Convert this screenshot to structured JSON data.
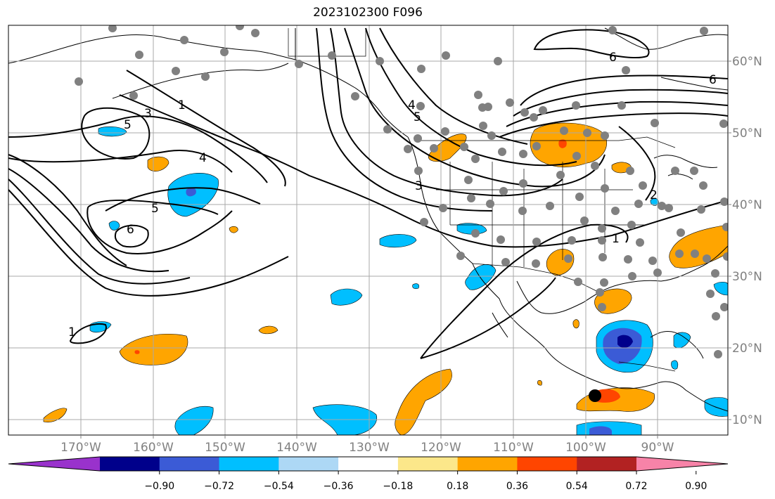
{
  "title": "2023102300 F096",
  "axes": {
    "lon_labels": [
      "170°W",
      "160°W",
      "150°W",
      "140°W",
      "130°W",
      "120°W",
      "110°W",
      "100°W",
      "90°W"
    ],
    "lat_labels": [
      "60°N",
      "50°N",
      "40°N",
      "30°N",
      "20°N",
      "10°N"
    ],
    "tick_color": "#808080"
  },
  "contour_labels": [
    "1",
    "3",
    "5",
    "4",
    "5",
    "6",
    "4",
    "5",
    "3",
    "6",
    "6",
    "1",
    "2",
    "1"
  ],
  "colorbar": {
    "labels": [
      "−0.90",
      "−0.72",
      "−0.54",
      "−0.36",
      "−0.18",
      "0.18",
      "0.36",
      "0.54",
      "0.72",
      "0.90"
    ],
    "colors": [
      "#9932cc",
      "#00008b",
      "#3b5bd6",
      "#00bfff",
      "#add8f5",
      "#ffffff",
      "#fce78a",
      "#ffa500",
      "#ff4500",
      "#b22222",
      "#f783a8"
    ]
  },
  "colors": {
    "station_dot": "#808080",
    "contour": "#000000",
    "grid": "#a9a9a9",
    "marker": "#000000"
  }
}
